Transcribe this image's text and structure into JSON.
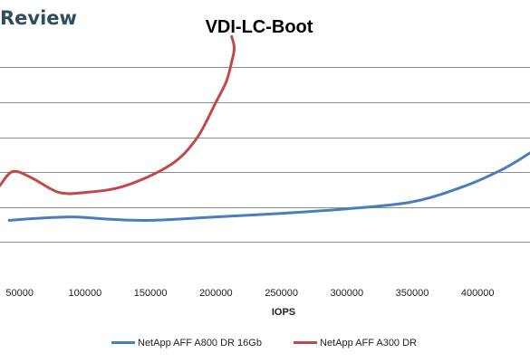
{
  "brand_text": "Review",
  "chart_data": {
    "type": "line",
    "title": "VDI-LC-Boot",
    "xlabel": "IOPS",
    "ylabel": "",
    "xlim": [
      35000,
      440000
    ],
    "ylim": [
      0,
      6.5
    ],
    "x_ticks": [
      50000,
      100000,
      150000,
      200000,
      250000,
      300000,
      350000,
      400000
    ],
    "y_gridlines": [
      1,
      2,
      3,
      4,
      5,
      6
    ],
    "grid": true,
    "legend": "bottom",
    "series": [
      {
        "name": "NetApp AFF A800 DR 16Gb",
        "color": "#4a7ebb",
        "points": [
          [
            42000,
            1.62
          ],
          [
            60000,
            1.67
          ],
          [
            90000,
            1.72
          ],
          [
            120000,
            1.65
          ],
          [
            150000,
            1.62
          ],
          [
            200000,
            1.72
          ],
          [
            250000,
            1.82
          ],
          [
            300000,
            1.95
          ],
          [
            350000,
            2.15
          ],
          [
            390000,
            2.6
          ],
          [
            420000,
            3.1
          ],
          [
            440000,
            3.55
          ]
        ]
      },
      {
        "name": "NetApp AFF A300 DR",
        "color": "#be4b48",
        "points": [
          [
            35000,
            2.62
          ],
          [
            45000,
            3.02
          ],
          [
            60000,
            2.82
          ],
          [
            80000,
            2.42
          ],
          [
            100000,
            2.42
          ],
          [
            130000,
            2.6
          ],
          [
            165000,
            3.2
          ],
          [
            185000,
            3.95
          ],
          [
            200000,
            5.0
          ],
          [
            208000,
            5.6
          ],
          [
            212000,
            6.15
          ],
          [
            214000,
            6.55
          ],
          [
            212000,
            6.88
          ]
        ]
      }
    ]
  }
}
